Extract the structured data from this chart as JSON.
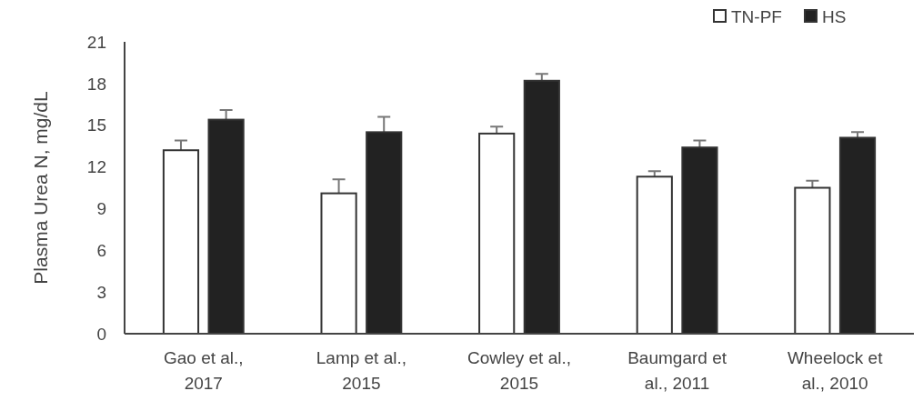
{
  "chart_data": {
    "type": "bar",
    "ylabel": "Plasma Urea N,  mg/dL",
    "categories": [
      "Gao et al., 2017",
      "Lamp et al., 2015",
      "Cowley et al., 2015",
      "Baumgard et al., 2011",
      "Wheelock et al., 2010"
    ],
    "series": [
      {
        "name": "TN-PF",
        "color": "#ffffff",
        "values": [
          13.2,
          10.1,
          14.4,
          11.3,
          10.5
        ],
        "errors": [
          0.7,
          1.0,
          0.5,
          0.4,
          0.5
        ]
      },
      {
        "name": "HS",
        "color": "#222222",
        "values": [
          15.4,
          14.5,
          18.2,
          13.4,
          14.1
        ],
        "errors": [
          0.7,
          1.1,
          0.5,
          0.5,
          0.4
        ]
      }
    ],
    "ylim": [
      0,
      21
    ],
    "yticks": [
      0,
      3,
      6,
      9,
      12,
      15,
      18,
      21
    ],
    "grid": false,
    "legend": "top right"
  }
}
